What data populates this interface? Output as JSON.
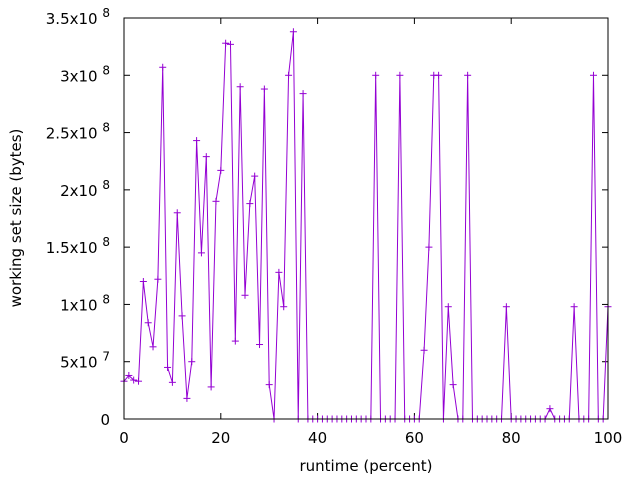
{
  "chart_data": {
    "type": "line",
    "title": "",
    "xlabel": "runtime (percent)",
    "ylabel": "working set size (bytes)",
    "xlim": [
      0,
      100
    ],
    "ylim": [
      0,
      350000000
    ],
    "grid": false,
    "series_color": "#9400d3",
    "xticks": [
      {
        "value": 0,
        "label": "0"
      },
      {
        "value": 20,
        "label": "20"
      },
      {
        "value": 40,
        "label": "40"
      },
      {
        "value": 60,
        "label": "60"
      },
      {
        "value": 80,
        "label": "80"
      },
      {
        "value": 100,
        "label": "100"
      }
    ],
    "yticks": [
      {
        "value": 0,
        "mant": "0",
        "exp": ""
      },
      {
        "value": 50000000,
        "mant": "5x10",
        "exp": "7"
      },
      {
        "value": 100000000,
        "mant": "1x10",
        "exp": "8"
      },
      {
        "value": 150000000,
        "mant": "1.5x10",
        "exp": "8"
      },
      {
        "value": 200000000,
        "mant": "2x10",
        "exp": "8"
      },
      {
        "value": 250000000,
        "mant": "2.5x10",
        "exp": "8"
      },
      {
        "value": 300000000,
        "mant": "3x10",
        "exp": "8"
      },
      {
        "value": 350000000,
        "mant": "3.5x10",
        "exp": "8"
      }
    ],
    "series": [
      {
        "x": [
          0,
          1,
          2,
          3,
          4,
          5,
          6,
          7,
          8,
          9,
          10,
          11,
          12,
          13,
          14,
          15,
          16,
          17,
          18,
          19,
          20,
          21,
          22,
          23,
          24,
          25,
          26,
          27,
          28,
          29,
          30,
          31,
          32,
          33,
          34,
          35,
          36,
          37,
          38,
          39,
          40,
          41,
          42,
          43,
          44,
          45,
          46,
          47,
          48,
          49,
          50,
          51,
          52,
          53,
          54,
          55,
          56,
          57,
          58,
          59,
          60,
          61,
          62,
          63,
          64,
          65,
          66,
          67,
          68,
          69,
          70,
          71,
          72,
          73,
          74,
          75,
          76,
          77,
          78,
          79,
          80,
          81,
          82,
          83,
          84,
          85,
          86,
          87,
          88,
          89,
          90,
          91,
          92,
          93,
          94,
          95,
          96,
          97,
          98,
          99,
          100
        ],
        "y": [
          33000000,
          38000000,
          34000000,
          33000000,
          120000000,
          84000000,
          63000000,
          122000000,
          307000000,
          45000000,
          32000000,
          180000000,
          90000000,
          18000000,
          50000000,
          243000000,
          145000000,
          229000000,
          28000000,
          190000000,
          217000000,
          328000000,
          327000000,
          68000000,
          290000000,
          108000000,
          188000000,
          212000000,
          65000000,
          288000000,
          30000000,
          0,
          128000000,
          98000000,
          300000000,
          338000000,
          0,
          284000000,
          0,
          0,
          0,
          0,
          0,
          0,
          0,
          0,
          0,
          0,
          0,
          0,
          0,
          0,
          300000000,
          0,
          0,
          0,
          0,
          300000000,
          0,
          0,
          0,
          0,
          60000000,
          150000000,
          300000000,
          300000000,
          0,
          98000000,
          30000000,
          0,
          0,
          300000000,
          0,
          0,
          0,
          0,
          0,
          0,
          0,
          98000000,
          0,
          0,
          0,
          0,
          0,
          0,
          0,
          0,
          9000000,
          0,
          0,
          0,
          0,
          98000000,
          0,
          0,
          0,
          300000000,
          0,
          0,
          98000000
        ]
      }
    ]
  }
}
